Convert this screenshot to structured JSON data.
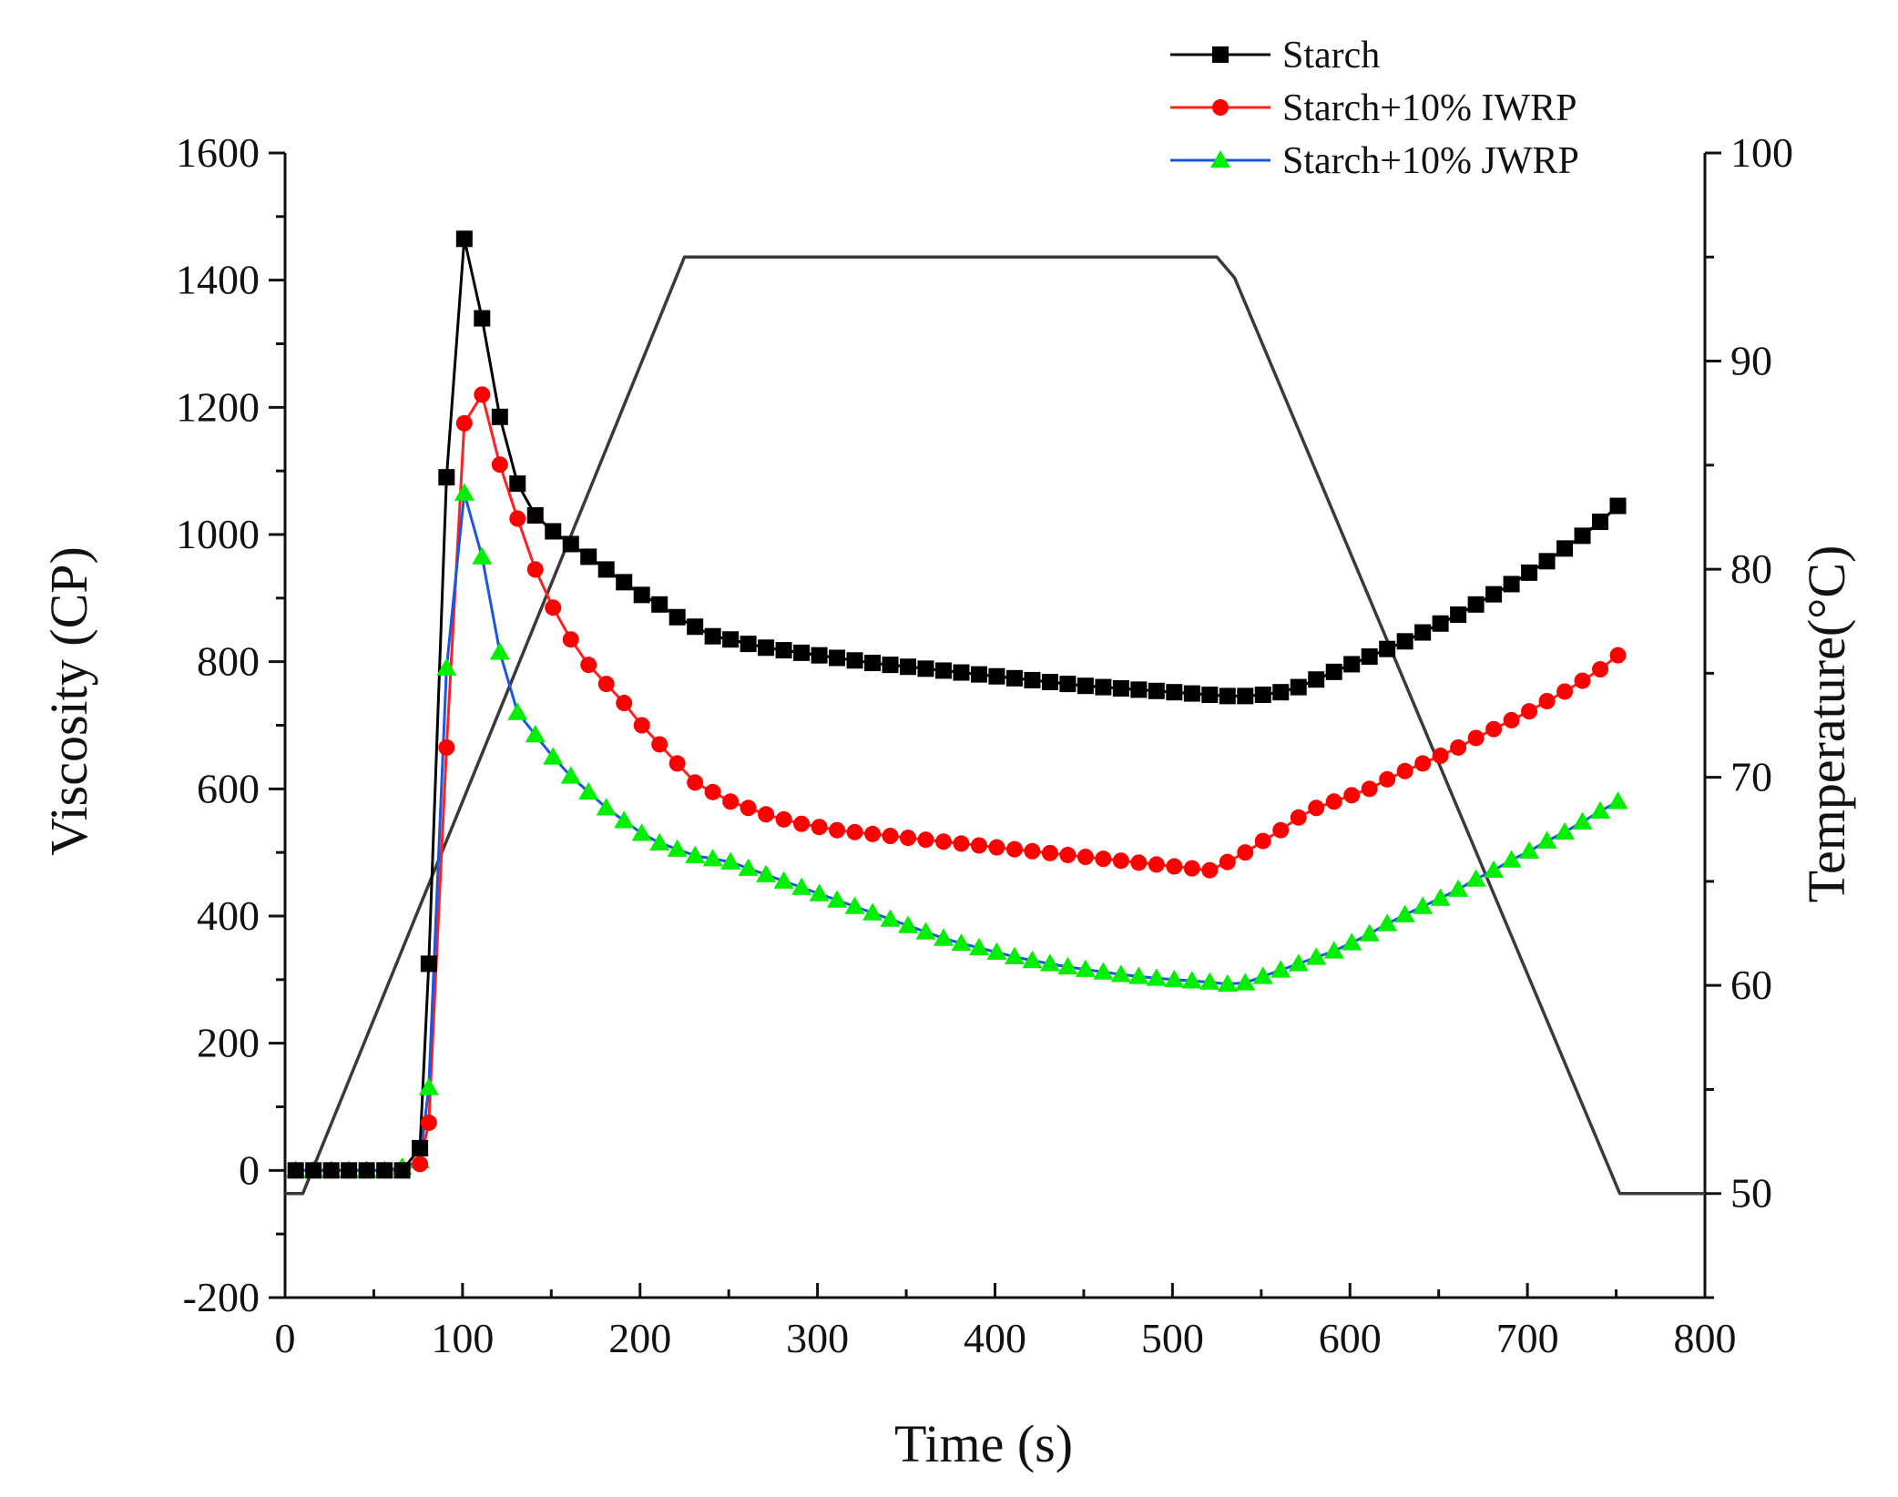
{
  "chart_data": {
    "type": "line",
    "title": "",
    "xlabel": "Time (s)",
    "ylabel": "Viscosity (CP)",
    "y2label": "Temperature(°C)",
    "xlim": [
      0,
      800
    ],
    "ylim": [
      -200,
      1600
    ],
    "y2lim": [
      45,
      100
    ],
    "xticks": [
      0,
      100,
      200,
      300,
      400,
      500,
      600,
      700,
      800
    ],
    "yticks": [
      -200,
      0,
      200,
      400,
      600,
      800,
      1000,
      1200,
      1400,
      1600
    ],
    "y2ticks": [
      50,
      60,
      70,
      80,
      90,
      100
    ],
    "grid": false,
    "legend_position": "top-right",
    "series": [
      {
        "name": "Starch",
        "axis": "left",
        "color": "#000000",
        "line_color": "#000000",
        "marker": "square",
        "x": [
          6,
          16,
          26,
          36,
          46,
          56,
          66,
          76,
          81,
          91,
          101,
          111,
          121,
          131,
          141,
          151,
          161,
          171,
          181,
          191,
          201,
          211,
          221,
          231,
          241,
          251,
          261,
          271,
          281,
          291,
          301,
          311,
          321,
          331,
          341,
          351,
          361,
          371,
          381,
          391,
          401,
          411,
          421,
          431,
          441,
          451,
          461,
          471,
          481,
          491,
          501,
          511,
          521,
          531,
          541,
          551,
          561,
          571,
          581,
          591,
          601,
          611,
          621,
          631,
          641,
          651,
          661,
          671,
          681,
          691,
          701,
          711,
          721,
          731,
          741,
          751
        ],
        "values": [
          0,
          0,
          0,
          0,
          0,
          0,
          0,
          35,
          325,
          1090,
          1465,
          1340,
          1185,
          1080,
          1030,
          1005,
          985,
          965,
          945,
          925,
          905,
          890,
          870,
          855,
          840,
          835,
          828,
          822,
          818,
          814,
          810,
          806,
          802,
          798,
          795,
          792,
          789,
          786,
          783,
          780,
          777,
          774,
          771,
          768,
          765,
          762,
          760,
          758,
          756,
          754,
          752,
          750,
          748,
          746,
          746,
          748,
          752,
          760,
          772,
          784,
          796,
          808,
          820,
          832,
          846,
          860,
          874,
          890,
          906,
          922,
          940,
          958,
          978,
          998,
          1020,
          1045
        ]
      },
      {
        "name": "Starch+10% IWRP",
        "axis": "left",
        "color": "#ff0000",
        "line_color": "#ff2020",
        "marker": "circle",
        "x": [
          6,
          16,
          26,
          36,
          46,
          56,
          66,
          76,
          81,
          91,
          101,
          111,
          121,
          131,
          141,
          151,
          161,
          171,
          181,
          191,
          201,
          211,
          221,
          231,
          241,
          251,
          261,
          271,
          281,
          291,
          301,
          311,
          321,
          331,
          341,
          351,
          361,
          371,
          381,
          391,
          401,
          411,
          421,
          431,
          441,
          451,
          461,
          471,
          481,
          491,
          501,
          511,
          521,
          531,
          541,
          551,
          561,
          571,
          581,
          591,
          601,
          611,
          621,
          631,
          641,
          651,
          661,
          671,
          681,
          691,
          701,
          711,
          721,
          731,
          741,
          751
        ],
        "values": [
          0,
          0,
          0,
          0,
          0,
          0,
          0,
          10,
          75,
          665,
          1175,
          1220,
          1110,
          1025,
          945,
          885,
          835,
          795,
          765,
          735,
          700,
          670,
          640,
          610,
          595,
          580,
          570,
          560,
          552,
          545,
          540,
          535,
          532,
          529,
          526,
          523,
          520,
          517,
          514,
          511,
          508,
          505,
          502,
          499,
          496,
          493,
          490,
          487,
          484,
          481,
          478,
          475,
          472,
          485,
          500,
          518,
          535,
          555,
          570,
          580,
          590,
          600,
          615,
          628,
          640,
          652,
          665,
          680,
          694,
          708,
          722,
          738,
          753,
          770,
          788,
          810
        ]
      },
      {
        "name": "Starch+10% JWRP",
        "axis": "left",
        "color": "#00ee00",
        "line_color": "#1a56e0",
        "marker": "triangle",
        "x": [
          6,
          16,
          26,
          36,
          46,
          56,
          66,
          76,
          81,
          91,
          101,
          111,
          121,
          131,
          141,
          151,
          161,
          171,
          181,
          191,
          201,
          211,
          221,
          231,
          241,
          251,
          261,
          271,
          281,
          291,
          301,
          311,
          321,
          331,
          341,
          351,
          361,
          371,
          381,
          391,
          401,
          411,
          421,
          431,
          441,
          451,
          461,
          471,
          481,
          491,
          501,
          511,
          521,
          531,
          541,
          551,
          561,
          571,
          581,
          591,
          601,
          611,
          621,
          631,
          641,
          651,
          661,
          671,
          681,
          691,
          701,
          711,
          721,
          731,
          741,
          751
        ],
        "values": [
          0,
          0,
          0,
          0,
          0,
          0,
          5,
          15,
          130,
          790,
          1065,
          965,
          815,
          720,
          685,
          650,
          620,
          595,
          570,
          550,
          530,
          515,
          505,
          495,
          490,
          485,
          475,
          465,
          455,
          445,
          435,
          425,
          415,
          405,
          395,
          385,
          375,
          365,
          357,
          350,
          343,
          336,
          330,
          325,
          320,
          316,
          312,
          308,
          305,
          302,
          300,
          298,
          296,
          293,
          295,
          305,
          315,
          325,
          335,
          345,
          358,
          372,
          388,
          402,
          415,
          428,
          442,
          458,
          472,
          488,
          502,
          518,
          532,
          548,
          565,
          580
        ]
      },
      {
        "name": "Temperature",
        "axis": "right",
        "color": "#333333",
        "line_color": "#3a3a3a",
        "marker": "none",
        "x": [
          0,
          10,
          225,
          525,
          535,
          752,
          800
        ],
        "values": [
          50,
          50,
          95,
          95,
          94,
          50,
          50
        ]
      }
    ]
  }
}
